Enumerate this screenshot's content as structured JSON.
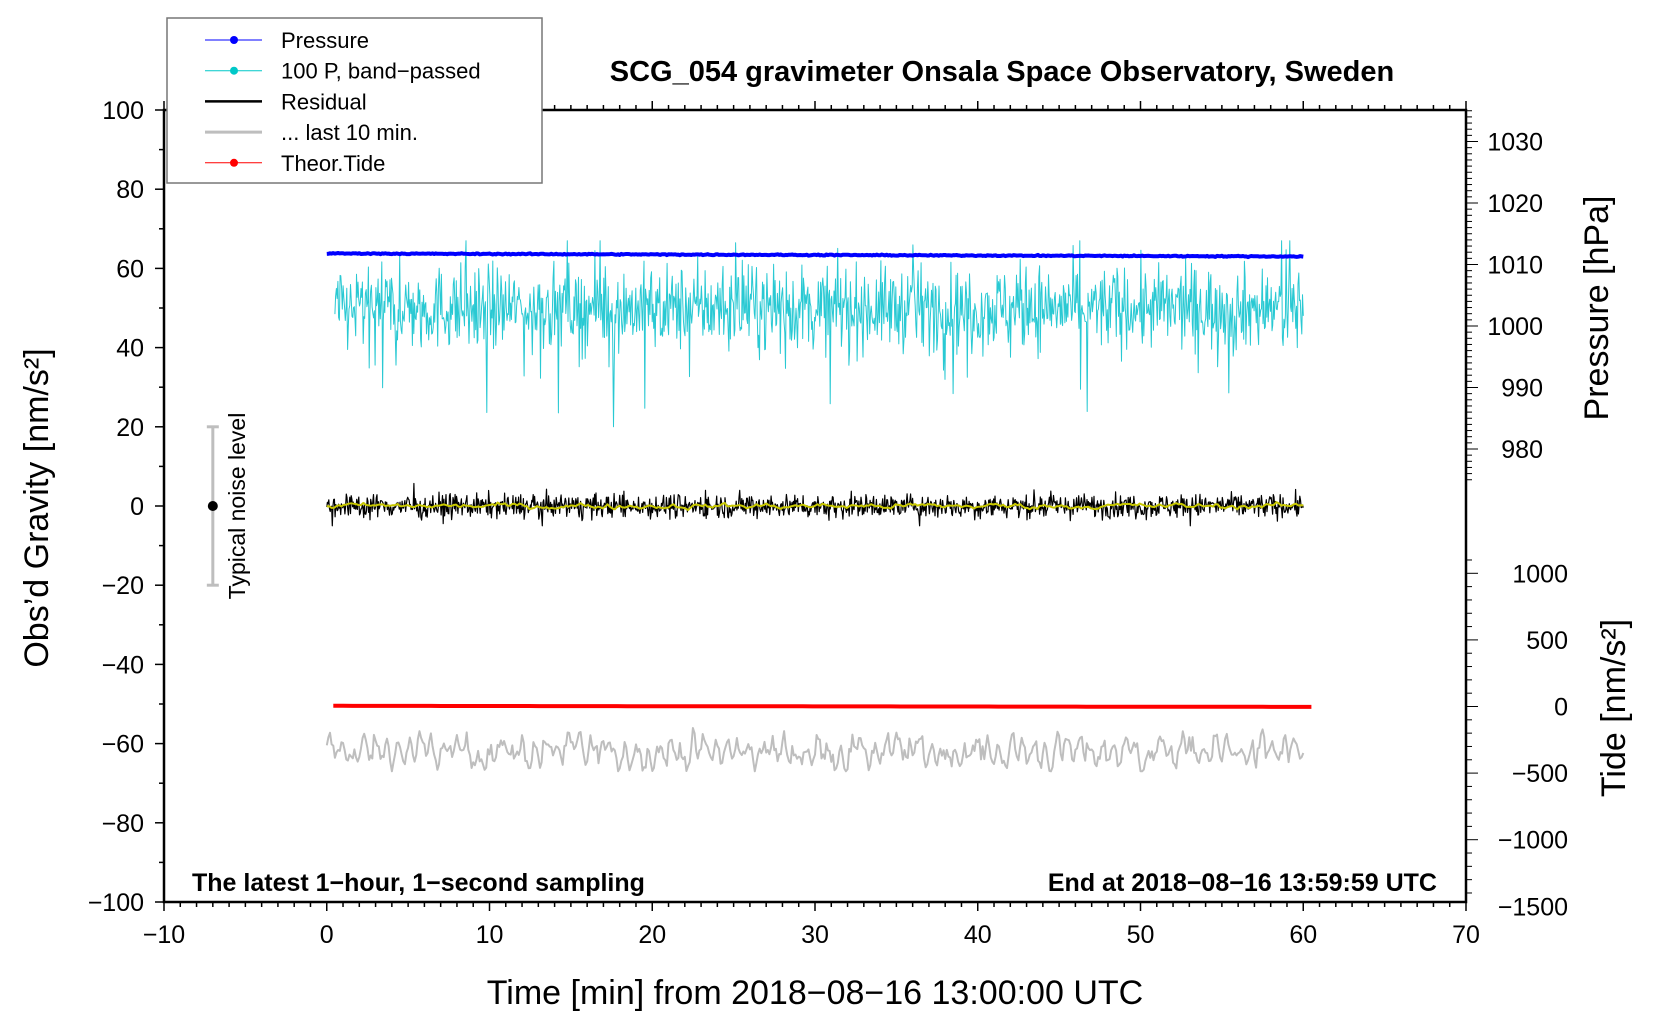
{
  "chart_data": {
    "type": "line",
    "title": "SCG_054 gravimeter Onsala Space Observatory, Sweden",
    "xlabel": "Time [min] from 2018−08−16 13:00:00 UTC",
    "ylabel": "Obs’d Gravity [nm/s²]",
    "ylabel_right_pressure": "Pressure [hPa]",
    "ylabel_right_tide": "Tide [nm/s²]",
    "annotation_left": "The latest 1−hour, 1−second sampling",
    "annotation_right": "End at 2018−08−16 13:59:59 UTC",
    "noise_label": "Typical noise level",
    "noise_bar": {
      "x": -7,
      "center": 0,
      "low": -20,
      "high": 20
    },
    "xlim": [
      -10,
      70
    ],
    "ylim": [
      -100,
      100
    ],
    "pressure_lim": [
      975,
      1035
    ],
    "tide_lim": [
      -1500,
      1500
    ],
    "x_ticks": [
      "−10",
      "0",
      "10",
      "20",
      "30",
      "40",
      "50",
      "60",
      "70"
    ],
    "x_tick_values": [
      -10,
      0,
      10,
      20,
      30,
      40,
      50,
      60,
      70
    ],
    "y_ticks": [
      "100",
      "80",
      "60",
      "40",
      "20",
      "0",
      "−20",
      "−40",
      "−60",
      "−80",
      "−100"
    ],
    "y_tick_values": [
      100,
      80,
      60,
      40,
      20,
      0,
      -20,
      -40,
      -60,
      -80,
      -100
    ],
    "pressure_ticks": [
      "1030",
      "1020",
      "1010",
      "1000",
      "990",
      "980"
    ],
    "pressure_tick_values": [
      1030,
      1020,
      1010,
      1000,
      990,
      980
    ],
    "tide_ticks": [
      "1000",
      "500",
      "0",
      "−500",
      "−1000",
      "−1500"
    ],
    "tide_tick_values": [
      1000,
      500,
      0,
      -500,
      -1000,
      -1500
    ],
    "legend": [
      {
        "label": "Pressure",
        "color": "#0000ff",
        "marker": true
      },
      {
        "label": "100 P, band−passed",
        "color": "#00c8c8",
        "marker": true
      },
      {
        "label": "Residual",
        "color": "#000000",
        "marker": false
      },
      {
        "label": "... last 10 min.",
        "color": "#bebebe",
        "marker": false
      },
      {
        "label": "Theor.Tide",
        "color": "#ff0000",
        "marker": true
      }
    ],
    "legend_placement": "top-left",
    "series": [
      {
        "name": "Pressure",
        "axis": "pressure",
        "x_range": [
          0,
          60
        ],
        "start": 1011.8,
        "end": 1011.3,
        "noise": 0.15,
        "color": "#0000ff"
      },
      {
        "name": "100 P, band-passed",
        "axis": "gravity",
        "x_range": [
          0.5,
          60
        ],
        "mean": 50,
        "amplitude": 7,
        "min": 20,
        "max": 67,
        "color": "#29c9d3"
      },
      {
        "name": "Residual",
        "axis": "gravity",
        "x_range": [
          0,
          60
        ],
        "mean": 0,
        "amplitude": 2.5,
        "min": -5,
        "max": 7,
        "color": "#000000"
      },
      {
        "name": "Residual smoothed",
        "axis": "gravity",
        "x_range": [
          0,
          60
        ],
        "mean": 0,
        "amplitude": 0.8,
        "color": "#c8c800"
      },
      {
        "name": "... last 10 min.",
        "axis": "gravity",
        "x_range": [
          0,
          60
        ],
        "mean": -62,
        "amplitude": 3,
        "min": -67,
        "max": -56,
        "color": "#bebebe"
      },
      {
        "name": "Theor.Tide",
        "axis": "tide",
        "x_range": [
          0.4,
          60.5
        ],
        "start": 5,
        "end": -3,
        "color": "#ff0000"
      }
    ]
  }
}
